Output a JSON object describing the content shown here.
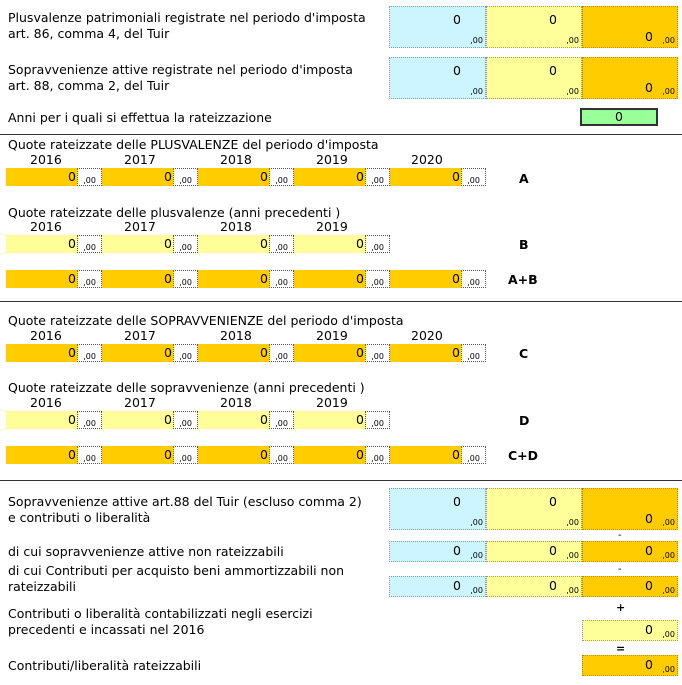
{
  "plus_label_1": "Plusvalenze patrimoniali registrate nel periodo d'imposta",
  "plus_label_2": "art. 86, comma 4, del Tuir",
  "sopr_label_1": "Sopravvenienze attive registrate nel periodo d'imposta",
  "sopr_label_2": "art. 88, comma 2, del Tuir",
  "anni_label": "Anni per i quali si effettua la rateizzazione",
  "anni_value": "0",
  "zero": "0",
  "dec": ",00",
  "quote_plus_label": "Quote rateizzate delle PLUSVALENZE del periodo d'imposta",
  "quote_plus_prec_label": "Quote rateizzate delle plusvalenze  (anni precedenti )",
  "quote_sopr_label": "Quote rateizzate delle SOPRAVVENIENZE del periodo d'imposta",
  "quote_sopr_prec_label": "Quote rateizzate delle sopravvenienze  (anni precedenti )",
  "years5": [
    "2016",
    "2017",
    "2018",
    "2019",
    "2020"
  ],
  "years4": [
    "2016",
    "2017",
    "2018",
    "2019"
  ],
  "tags": {
    "a": "A",
    "b": "B",
    "ab": "A+B",
    "c": "C",
    "d": "D",
    "cd": "C+D"
  },
  "sopr88_label_1": "Sopravvenienze attive art.88 del Tuir (escluso comma 2)",
  "sopr88_label_2": "e contributi o liberalità",
  "nonrat_label": "di cui sopravvenienze attive non rateizzabili",
  "contrib_label_1": "di cui Contributi per acquisto beni ammortizzabili non",
  "contrib_label_2": "rateizzabili",
  "prec_label_1": "Contributi o liberalità contabilizzati negli esercizi",
  "prec_label_2": "precedenti e incassati nel 2016",
  "ratez_label": "Contributi/liberalità rateizzabili",
  "minus": "-",
  "plus": "+",
  "equals": "="
}
